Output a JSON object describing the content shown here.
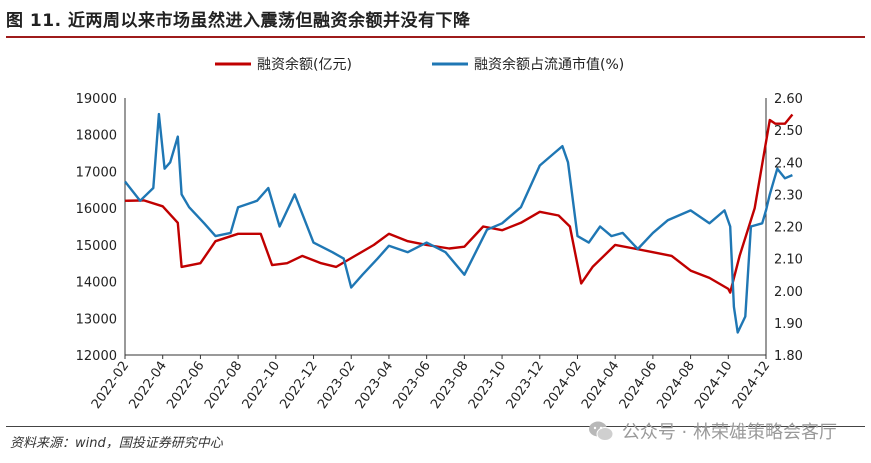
{
  "title": "图 11. 近两周以来市场虽然进入震荡但融资余额并没有下降",
  "source": "资料来源：wind，国投证券研究中心",
  "watermark": "公众号 · 林荣雄策略会客厅",
  "chart_data": {
    "type": "line",
    "x": [
      "2022-02",
      "2022-04",
      "2022-06",
      "2022-08",
      "2022-10",
      "2022-12",
      "2023-02",
      "2023-04",
      "2023-06",
      "2023-08",
      "2023-10",
      "2023-12",
      "2024-02",
      "2024-04",
      "2024-06",
      "2024-08",
      "2024-10",
      "2024-12"
    ],
    "ylim": [
      12000,
      19000
    ],
    "y2lim": [
      1.8,
      2.6
    ],
    "yticks": [
      "12000",
      "13000",
      "14000",
      "15000",
      "16000",
      "17000",
      "18000",
      "19000"
    ],
    "y2ticks": [
      "1.80",
      "1.90",
      "2.00",
      "2.10",
      "2.20",
      "2.30",
      "2.40",
      "2.50",
      "2.60"
    ],
    "legend_position": "top",
    "series": [
      {
        "name": "融资余额(亿元)",
        "axis": "left",
        "color": "#c00000",
        "points": [
          [
            0,
            16200
          ],
          [
            0.5,
            16210
          ],
          [
            1.0,
            16050
          ],
          [
            1.4,
            15600
          ],
          [
            1.5,
            14400
          ],
          [
            2.0,
            14500
          ],
          [
            2.4,
            15100
          ],
          [
            3.0,
            15300
          ],
          [
            3.6,
            15300
          ],
          [
            3.9,
            14450
          ],
          [
            4.3,
            14500
          ],
          [
            4.7,
            14700
          ],
          [
            5.2,
            14500
          ],
          [
            5.6,
            14400
          ],
          [
            6.1,
            14700
          ],
          [
            6.6,
            15000
          ],
          [
            7.0,
            15300
          ],
          [
            7.5,
            15100
          ],
          [
            8.0,
            15000
          ],
          [
            8.6,
            14900
          ],
          [
            9.0,
            14950
          ],
          [
            9.5,
            15500
          ],
          [
            10.0,
            15400
          ],
          [
            10.5,
            15600
          ],
          [
            11.0,
            15900
          ],
          [
            11.5,
            15800
          ],
          [
            11.8,
            15500
          ],
          [
            12.1,
            13950
          ],
          [
            12.4,
            14400
          ],
          [
            13.0,
            15000
          ],
          [
            13.5,
            14900
          ],
          [
            14.0,
            14800
          ],
          [
            14.5,
            14700
          ],
          [
            15.0,
            14300
          ],
          [
            15.5,
            14100
          ],
          [
            16.0,
            13800
          ],
          [
            16.05,
            13700
          ],
          [
            16.3,
            14700
          ],
          [
            16.7,
            16000
          ],
          [
            16.95,
            17500
          ],
          [
            17.05,
            18100
          ],
          [
            17.1,
            18400
          ],
          [
            17.25,
            18300
          ],
          [
            17.5,
            18300
          ],
          [
            17.7,
            18550
          ]
        ]
      },
      {
        "name": "融资余额占流通市值(%)",
        "axis": "right",
        "color": "#1f77b4",
        "points": [
          [
            0,
            2.34
          ],
          [
            0.4,
            2.28
          ],
          [
            0.75,
            2.32
          ],
          [
            0.9,
            2.55
          ],
          [
            1.05,
            2.38
          ],
          [
            1.2,
            2.4
          ],
          [
            1.4,
            2.48
          ],
          [
            1.5,
            2.3
          ],
          [
            1.7,
            2.26
          ],
          [
            2.1,
            2.21
          ],
          [
            2.4,
            2.17
          ],
          [
            2.8,
            2.18
          ],
          [
            3.0,
            2.26
          ],
          [
            3.5,
            2.28
          ],
          [
            3.8,
            2.32
          ],
          [
            4.1,
            2.2
          ],
          [
            4.5,
            2.3
          ],
          [
            5.0,
            2.15
          ],
          [
            5.5,
            2.12
          ],
          [
            5.8,
            2.1
          ],
          [
            6.0,
            2.01
          ],
          [
            6.3,
            2.05
          ],
          [
            6.7,
            2.1
          ],
          [
            7.0,
            2.14
          ],
          [
            7.5,
            2.12
          ],
          [
            8.0,
            2.15
          ],
          [
            8.5,
            2.12
          ],
          [
            9.0,
            2.05
          ],
          [
            9.3,
            2.12
          ],
          [
            9.6,
            2.19
          ],
          [
            10.0,
            2.21
          ],
          [
            10.5,
            2.26
          ],
          [
            11.0,
            2.39
          ],
          [
            11.4,
            2.43
          ],
          [
            11.6,
            2.45
          ],
          [
            11.75,
            2.4
          ],
          [
            12.0,
            2.17
          ],
          [
            12.3,
            2.15
          ],
          [
            12.6,
            2.2
          ],
          [
            12.9,
            2.17
          ],
          [
            13.2,
            2.18
          ],
          [
            13.6,
            2.13
          ],
          [
            14.0,
            2.18
          ],
          [
            14.4,
            2.22
          ],
          [
            15.0,
            2.25
          ],
          [
            15.5,
            2.21
          ],
          [
            15.9,
            2.25
          ],
          [
            16.05,
            2.2
          ],
          [
            16.15,
            1.95
          ],
          [
            16.25,
            1.87
          ],
          [
            16.45,
            1.92
          ],
          [
            16.6,
            2.2
          ],
          [
            16.9,
            2.21
          ],
          [
            17.0,
            2.25
          ],
          [
            17.1,
            2.3
          ],
          [
            17.3,
            2.38
          ],
          [
            17.5,
            2.35
          ],
          [
            17.7,
            2.36
          ]
        ]
      }
    ]
  }
}
